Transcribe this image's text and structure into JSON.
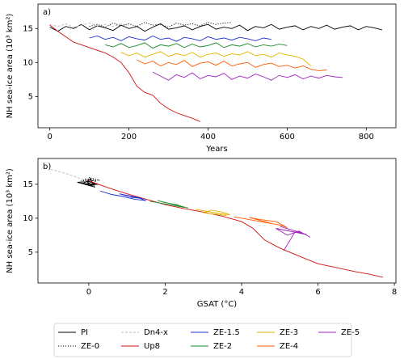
{
  "chart_data": [
    {
      "type": "line",
      "panel_label": "a)",
      "xlabel": "Years",
      "ylabel": "NH sea-ice area (10³ km²)",
      "xlim": [
        -30,
        875
      ],
      "ylim": [
        0.4,
        18.6
      ],
      "xticks": [
        0,
        200,
        400,
        600,
        800
      ],
      "yticks": [
        5,
        10,
        15
      ],
      "series": [
        {
          "name": "PI",
          "color": "#000000",
          "dash": "solid",
          "x": [
            0,
            20,
            40,
            60,
            80,
            100,
            120,
            140,
            160,
            180,
            200,
            220,
            240,
            260,
            280,
            300,
            320,
            340,
            360,
            380,
            400,
            420,
            440,
            460,
            480,
            500,
            520,
            540,
            560,
            580,
            600,
            620,
            640,
            660,
            680,
            700,
            720,
            740,
            760,
            780,
            800,
            820,
            840
          ],
          "values": [
            15.2,
            14.6,
            15.3,
            15.0,
            15.6,
            14.8,
            15.4,
            15.1,
            14.7,
            15.5,
            15.0,
            15.3,
            14.6,
            15.2,
            15.7,
            14.9,
            15.1,
            15.4,
            14.8,
            15.3,
            15.6,
            14.9,
            15.2,
            15.0,
            15.5,
            14.7,
            15.3,
            15.1,
            15.6,
            14.9,
            15.2,
            15.4,
            14.8,
            15.3,
            15.0,
            15.5,
            14.9,
            15.2,
            15.4,
            14.8,
            15.3,
            15.1,
            14.8
          ]
        },
        {
          "name": "ZE-0",
          "color": "#000000",
          "dash": "dotted",
          "x": [
            100,
            120,
            140,
            160,
            180,
            200,
            220,
            240,
            260,
            280,
            300,
            320,
            340,
            360,
            380,
            400,
            420,
            440,
            460
          ],
          "values": [
            15.3,
            15.6,
            15.2,
            15.8,
            15.4,
            15.7,
            15.3,
            15.9,
            15.5,
            15.6,
            15.2,
            15.8,
            15.5,
            15.7,
            15.4,
            15.9,
            15.6,
            15.8,
            15.9
          ]
        },
        {
          "name": "Dn4-x",
          "color": "#bbbbbb",
          "dash": "dashed",
          "x": [
            0,
            20,
            40,
            60,
            80,
            100,
            120,
            140,
            160,
            180,
            200
          ],
          "values": [
            15.6,
            15.3,
            15.7,
            15.2,
            15.5,
            15.8,
            15.4,
            15.6,
            15.3,
            15.7,
            15.5
          ]
        },
        {
          "name": "Up8",
          "color": "#d01010",
          "dash": "solid",
          "x": [
            0,
            20,
            40,
            60,
            80,
            100,
            120,
            140,
            160,
            180,
            200,
            220,
            240,
            260,
            280,
            300,
            320,
            340,
            360,
            380
          ],
          "values": [
            15.5,
            14.6,
            13.8,
            13.0,
            12.6,
            12.2,
            11.8,
            11.4,
            10.8,
            10.0,
            8.5,
            6.5,
            5.6,
            5.2,
            4.0,
            3.2,
            2.6,
            2.2,
            1.8,
            1.3
          ]
        },
        {
          "name": "ZE-1.5",
          "color": "#1f2fd0",
          "dash": "solid",
          "x": [
            100,
            120,
            140,
            160,
            180,
            200,
            220,
            240,
            260,
            280,
            300,
            320,
            340,
            360,
            380,
            400,
            420,
            440,
            460,
            480,
            500,
            520,
            540,
            560
          ],
          "values": [
            13.6,
            13.9,
            13.4,
            13.7,
            13.2,
            13.8,
            13.5,
            13.3,
            13.9,
            13.4,
            13.6,
            13.1,
            13.7,
            13.5,
            13.2,
            13.8,
            13.4,
            13.6,
            13.3,
            13.7,
            13.5,
            13.2,
            13.6,
            13.4
          ]
        },
        {
          "name": "ZE-2",
          "color": "#1a8a2a",
          "dash": "solid",
          "x": [
            140,
            160,
            180,
            200,
            220,
            240,
            260,
            280,
            300,
            320,
            340,
            360,
            380,
            400,
            420,
            440,
            460,
            480,
            500,
            520,
            540,
            560,
            580,
            600
          ],
          "values": [
            12.6,
            12.3,
            12.8,
            12.2,
            12.5,
            12.9,
            12.1,
            12.6,
            12.4,
            12.8,
            12.2,
            12.7,
            12.3,
            12.5,
            12.9,
            12.2,
            12.6,
            12.4,
            12.8,
            12.3,
            12.6,
            12.4,
            12.7,
            12.5
          ]
        },
        {
          "name": "ZE-3",
          "color": "#e6b400",
          "dash": "solid",
          "x": [
            180,
            200,
            220,
            240,
            260,
            280,
            300,
            320,
            340,
            360,
            380,
            400,
            420,
            440,
            460,
            480,
            500,
            520,
            540,
            560,
            580,
            600,
            620,
            640,
            660
          ],
          "values": [
            11.5,
            11.0,
            11.4,
            10.8,
            11.2,
            11.6,
            10.9,
            11.3,
            11.0,
            11.5,
            10.8,
            11.2,
            11.4,
            10.9,
            11.3,
            11.1,
            11.6,
            11.0,
            11.2,
            10.8,
            11.4,
            11.1,
            10.9,
            10.5,
            9.5
          ]
        },
        {
          "name": "ZE-4",
          "color": "#ff5a00",
          "dash": "solid",
          "x": [
            220,
            240,
            260,
            280,
            300,
            320,
            340,
            360,
            380,
            400,
            420,
            440,
            460,
            480,
            500,
            520,
            540,
            560,
            580,
            600,
            620,
            640,
            660,
            680,
            700
          ],
          "values": [
            10.4,
            9.8,
            10.2,
            9.5,
            10.0,
            9.7,
            10.3,
            9.4,
            9.9,
            10.1,
            9.6,
            10.2,
            9.5,
            9.8,
            10.0,
            9.3,
            9.7,
            9.9,
            9.4,
            9.6,
            9.2,
            9.5,
            9.0,
            8.8,
            8.9
          ]
        },
        {
          "name": "ZE-5",
          "color": "#a020c0",
          "dash": "solid",
          "x": [
            260,
            280,
            300,
            320,
            340,
            360,
            380,
            400,
            420,
            440,
            460,
            480,
            500,
            520,
            540,
            560,
            580,
            600,
            620,
            640,
            660,
            680,
            700,
            720,
            740
          ],
          "values": [
            8.6,
            8.0,
            7.4,
            8.2,
            7.8,
            8.5,
            7.6,
            8.1,
            7.9,
            8.4,
            7.5,
            8.0,
            7.7,
            8.3,
            7.9,
            7.4,
            8.1,
            7.8,
            8.2,
            7.6,
            8.0,
            7.7,
            8.1,
            7.9,
            7.8
          ]
        }
      ]
    },
    {
      "type": "line",
      "panel_label": "b)",
      "xlabel": "GSAT (°C)",
      "ylabel": "NH sea-ice area (10³ km²)",
      "xlim": [
        -1.33,
        8.04
      ],
      "ylim": [
        0.46,
        18.8
      ],
      "xticks": [
        0,
        2,
        4,
        6,
        8
      ],
      "yticks": [
        5,
        10,
        15
      ],
      "series": [
        {
          "color": "#000000",
          "dash": "solid",
          "x": [
            -0.2,
            0.1,
            -0.1,
            0.2,
            0.0,
            -0.3,
            0.15,
            0.05,
            -0.15,
            0.25,
            0.0,
            -0.05
          ],
          "values": [
            15.2,
            14.8,
            15.6,
            15.0,
            15.4,
            15.3,
            14.6,
            15.8,
            15.1,
            15.0,
            14.9,
            15.5
          ]
        },
        {
          "color": "#000000",
          "dash": "dotted",
          "x": [
            -0.1,
            0.2,
            0.0,
            0.3,
            -0.2,
            0.1
          ],
          "values": [
            15.8,
            15.4,
            16.0,
            15.6,
            15.5,
            15.9
          ]
        },
        {
          "color": "#bbbbbb",
          "dash": "dashed",
          "x": [
            -1.0,
            -0.8,
            -0.6,
            -0.4,
            -0.2,
            0.0
          ],
          "values": [
            17.2,
            16.9,
            16.6,
            16.2,
            15.8,
            15.4
          ]
        },
        {
          "color": "#d01010",
          "dash": "solid",
          "x": [
            0,
            0.5,
            1,
            1.5,
            2,
            2.5,
            3,
            3.5,
            4,
            4.3,
            4.6,
            5,
            5.3,
            5.6,
            6,
            6.5,
            7,
            7.3,
            7.7
          ],
          "values": [
            15.5,
            14.5,
            13.6,
            12.8,
            12.0,
            11.4,
            10.9,
            10.3,
            9.5,
            8.5,
            6.8,
            5.6,
            4.9,
            4.2,
            3.3,
            2.7,
            2.1,
            1.8,
            1.3
          ]
        },
        {
          "color": "#1f2fd0",
          "dash": "solid",
          "x": [
            0.3,
            0.6,
            0.9,
            1.2,
            1.5,
            1.3,
            1.0,
            0.8,
            1.4,
            1.1
          ],
          "values": [
            14.0,
            13.5,
            13.2,
            12.8,
            12.6,
            13.0,
            13.3,
            13.6,
            12.9,
            13.1
          ]
        },
        {
          "color": "#1a8a2a",
          "dash": "solid",
          "x": [
            1.6,
            1.9,
            2.2,
            2.5,
            2.3,
            2.0,
            1.8,
            2.4,
            2.6
          ],
          "values": [
            12.5,
            12.2,
            11.9,
            11.6,
            12.0,
            12.3,
            12.6,
            11.8,
            11.5
          ]
        },
        {
          "color": "#e6b400",
          "dash": "solid",
          "x": [
            2.8,
            3.1,
            3.4,
            3.7,
            3.5,
            3.2,
            3.0,
            3.6
          ],
          "values": [
            11.3,
            11.0,
            10.7,
            10.5,
            10.9,
            11.2,
            10.8,
            10.4
          ]
        },
        {
          "color": "#ff5a00",
          "dash": "solid",
          "x": [
            3.8,
            4.1,
            4.4,
            4.7,
            5.0,
            5.2,
            4.9,
            4.5,
            4.2,
            4.8
          ],
          "values": [
            10.2,
            9.9,
            9.6,
            9.3,
            9.0,
            8.6,
            9.5,
            9.8,
            10.1,
            9.2
          ]
        },
        {
          "color": "#a020c0",
          "dash": "solid",
          "x": [
            5.0,
            5.3,
            5.6,
            5.8,
            5.5,
            5.2,
            4.9,
            5.7,
            5.4,
            5.1
          ],
          "values": [
            8.8,
            8.3,
            7.8,
            7.2,
            8.1,
            7.5,
            8.5,
            7.6,
            8.0,
            5.2
          ]
        }
      ]
    }
  ]
}
